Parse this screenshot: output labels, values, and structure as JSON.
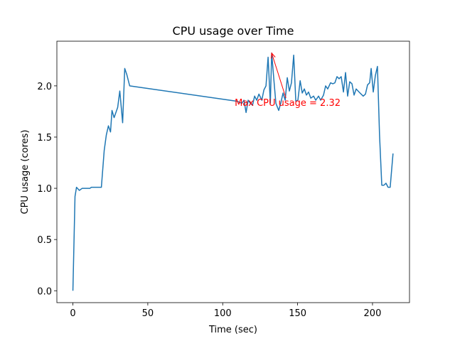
{
  "chart_data": {
    "type": "line",
    "title": "CPU usage over Time",
    "xlabel": "Time (sec)",
    "ylabel": "CPU usage (cores)",
    "x": [
      0,
      1.4,
      2.4,
      4.3,
      6.2,
      11.4,
      12.3,
      15.2,
      19.0,
      20.9,
      22.3,
      23.7,
      25.1,
      26.1,
      27.5,
      29.9,
      31.3,
      33.2,
      34.6,
      36.0,
      37.9,
      109.5,
      112.8,
      114.2,
      115.6,
      117.0,
      118.5,
      119.9,
      121.3,
      122.7,
      124.2,
      126.1,
      127.5,
      128.9,
      130.3,
      131.8,
      132.7,
      134.1,
      135.5,
      137.4,
      138.9,
      140.3,
      141.7,
      143.1,
      144.5,
      145.9,
      147.4,
      148.8,
      150.2,
      151.7,
      153.1,
      154.5,
      155.9,
      157.3,
      158.8,
      160.7,
      162.1,
      164.0,
      165.4,
      167.3,
      168.7,
      170.1,
      172.0,
      173.5,
      174.9,
      176.3,
      177.7,
      179.1,
      180.6,
      182.0,
      183.4,
      184.8,
      186.3,
      187.7,
      189.1,
      191.0,
      192.4,
      193.8,
      195.3,
      196.7,
      198.1,
      199.1,
      200.5,
      201.9,
      203.3,
      204.7,
      206.2,
      207.6,
      209.0,
      210.4,
      211.8,
      213.7
    ],
    "series": [
      {
        "color": "#1f77b4",
        "values": [
          0,
          0.92,
          1.01,
          0.98,
          1.0,
          1.0,
          1.01,
          1.01,
          1.01,
          1.37,
          1.52,
          1.61,
          1.55,
          1.76,
          1.69,
          1.79,
          1.95,
          1.64,
          2.17,
          2.11,
          2.0,
          1.85,
          1.83,
          1.86,
          1.74,
          1.86,
          1.83,
          1.81,
          1.9,
          1.86,
          1.92,
          1.86,
          1.96,
          2.0,
          2.28,
          1.83,
          2.32,
          2.07,
          1.83,
          1.76,
          1.84,
          1.93,
          1.86,
          2.08,
          1.95,
          2.03,
          2.3,
          1.85,
          1.86,
          2.05,
          1.93,
          1.97,
          1.91,
          1.94,
          1.88,
          1.9,
          1.86,
          1.9,
          1.86,
          1.91,
          2.0,
          1.97,
          2.03,
          2.02,
          2.03,
          2.09,
          2.07,
          2.09,
          1.94,
          2.13,
          1.9,
          2.04,
          2.02,
          1.91,
          1.97,
          1.94,
          1.92,
          1.9,
          1.92,
          2.01,
          2.03,
          2.17,
          1.94,
          2.1,
          2.19,
          1.52,
          1.03,
          1.03,
          1.05,
          1.01,
          1.01,
          1.34
        ]
      }
    ],
    "xlim": [
      -10.7,
      224.7
    ],
    "xticks": [
      0,
      50,
      100,
      150,
      200
    ],
    "ylim": [
      -0.116,
      2.436
    ],
    "yticks": [
      {
        "value": 0,
        "label": "0.0"
      },
      0.5,
      {
        "value": 1,
        "label": "1.0"
      },
      1.5,
      {
        "value": 2,
        "label": "2.0"
      }
    ],
    "annotation": {
      "text": "Max CPU usage = 2.32",
      "xy": [
        132.7,
        2.32
      ],
      "xytext": [
        108,
        1.84
      ],
      "color": "red"
    }
  }
}
